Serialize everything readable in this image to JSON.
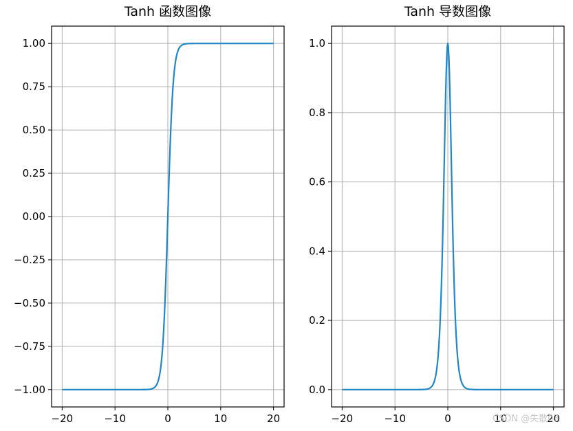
{
  "chart_data": [
    {
      "type": "line",
      "title": "Tanh 函数图像",
      "xlabel": "",
      "ylabel": "",
      "function": "tanh",
      "xlim": [
        -22,
        22
      ],
      "ylim": [
        -1.1,
        1.1
      ],
      "xticks": [
        -20,
        -10,
        0,
        10,
        20
      ],
      "xtick_labels": [
        "−20",
        "−10",
        "0",
        "10",
        "20"
      ],
      "yticks": [
        1.0,
        0.75,
        0.5,
        0.25,
        0.0,
        -0.25,
        -0.5,
        -0.75,
        -1.0
      ],
      "ytick_labels": [
        "1.00",
        "0.75",
        "0.50",
        "0.25",
        "0.00",
        "−0.25",
        "−0.50",
        "−0.75",
        "−1.00"
      ],
      "grid": true,
      "series": [
        {
          "color": "#1f86c8",
          "x": [
            -20,
            -10,
            -5,
            -4,
            -3,
            -2.5,
            -2,
            -1.5,
            -1,
            -0.5,
            0,
            0.5,
            1,
            1.5,
            2,
            2.5,
            3,
            4,
            5,
            10,
            20
          ],
          "y": [
            -1.0,
            -1.0,
            -0.9999,
            -0.9993,
            -0.9951,
            -0.9866,
            -0.964,
            -0.9051,
            -0.7616,
            -0.4621,
            0.0,
            0.4621,
            0.7616,
            0.9051,
            0.964,
            0.9866,
            0.9951,
            0.9993,
            0.9999,
            1.0,
            1.0
          ]
        }
      ]
    },
    {
      "type": "line",
      "title": "Tanh 导数图像",
      "xlabel": "",
      "ylabel": "",
      "function": "1 - tanh^2",
      "xlim": [
        -22,
        22
      ],
      "ylim": [
        -0.05,
        1.05
      ],
      "xticks": [
        -20,
        -10,
        0,
        10,
        20
      ],
      "xtick_labels": [
        "−20",
        "−10",
        "0",
        "10",
        "20"
      ],
      "yticks": [
        1.0,
        0.8,
        0.6,
        0.4,
        0.2,
        0.0
      ],
      "ytick_labels": [
        "1.0",
        "0.8",
        "0.6",
        "0.4",
        "0.2",
        "0.0"
      ],
      "grid": true,
      "series": [
        {
          "color": "#1f86c8",
          "x": [
            -20,
            -10,
            -5,
            -4,
            -3,
            -2.5,
            -2,
            -1.5,
            -1,
            -0.5,
            0,
            0.5,
            1,
            1.5,
            2,
            2.5,
            3,
            4,
            5,
            10,
            20
          ],
          "y": [
            0.0,
            0.0,
            0.0002,
            0.0013,
            0.0099,
            0.0266,
            0.0707,
            0.1807,
            0.42,
            0.7864,
            1.0,
            0.7864,
            0.42,
            0.1807,
            0.0707,
            0.0266,
            0.0099,
            0.0013,
            0.0002,
            0.0,
            0.0
          ]
        }
      ]
    }
  ],
  "watermark": "CSDN @失散03"
}
